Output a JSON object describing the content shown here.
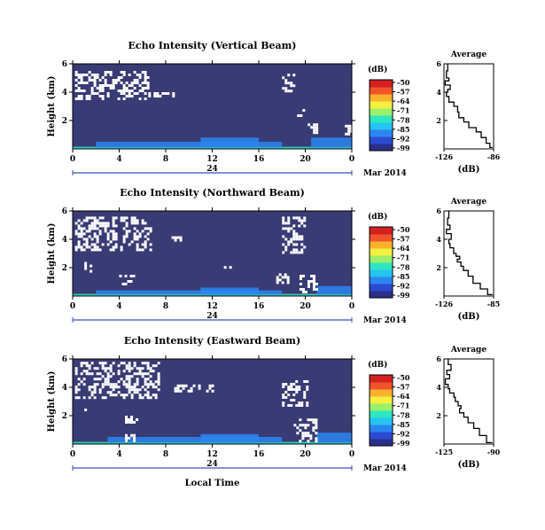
{
  "x_axis_title": "Local Time",
  "date_label": "Mar 2014",
  "day_label": "24",
  "colorbar": {
    "unit": "(dB)",
    "ticks": [
      "-50",
      "-57",
      "-64",
      "-71",
      "-78",
      "-85",
      "-92",
      "-99"
    ],
    "colors": [
      "#2b2f8a",
      "#2a4bd0",
      "#2b86f2",
      "#26c4f0",
      "#2ee6c2",
      "#9af06a",
      "#f4f040",
      "#f8b22e",
      "#f0542a",
      "#d42020"
    ]
  },
  "colors": {
    "background": "#383b74",
    "noise": "#ffffff"
  },
  "chart_data": [
    {
      "type": "heatmap",
      "title": "Echo Intensity (Vertical Beam)",
      "xlabel": "Local Time",
      "ylabel": "Height (km)",
      "x_ticks": [
        "0",
        "4",
        "8",
        "12",
        "16",
        "20",
        "0"
      ],
      "y_ticks": [
        "6",
        "4",
        "2"
      ],
      "xlim": [
        0,
        24
      ],
      "ylim": [
        0,
        6
      ],
      "value_range_db": [
        -99,
        -50
      ],
      "dominant_value_db": -99,
      "noise_blocks": [
        {
          "t": [
            0.2,
            6.5
          ],
          "h": [
            3.5,
            5.5
          ]
        },
        {
          "t": [
            6.5,
            9.2
          ],
          "h": [
            3.8,
            4.0
          ]
        },
        {
          "t": [
            18.0,
            19.0
          ],
          "h": [
            3.8,
            5.3
          ]
        },
        {
          "t": [
            19.3,
            19.8
          ],
          "h": [
            2.3,
            3.0
          ]
        },
        {
          "t": [
            20.2,
            21.0
          ],
          "h": [
            0.9,
            1.8
          ]
        },
        {
          "t": [
            23.4,
            23.9
          ],
          "h": [
            1.0,
            1.7
          ]
        }
      ],
      "echo_layers": [
        {
          "t": [
            0,
            24
          ],
          "h": [
            0.0,
            0.15
          ],
          "db": -78
        },
        {
          "t": [
            2,
            18
          ],
          "h": [
            0.1,
            0.5
          ],
          "db": -88
        },
        {
          "t": [
            11,
            16
          ],
          "h": [
            0.1,
            0.8
          ],
          "db": -85
        },
        {
          "t": [
            20.5,
            24
          ],
          "h": [
            0.1,
            0.8
          ],
          "db": -85
        }
      ],
      "average_profile": {
        "title": "Average",
        "xlabel": "(dB)",
        "x_ticks": [
          "-126",
          "-86"
        ],
        "xlim": [
          -126,
          -86
        ],
        "y_ticks": [
          "6",
          "4",
          "2"
        ],
        "ylim": [
          0,
          6
        ],
        "db": [
          -123,
          -124,
          -122,
          -125,
          -121,
          -123,
          -124,
          -122,
          -118,
          -115,
          -114,
          -110,
          -106,
          -100,
          -96,
          -92,
          -89,
          -87
        ],
        "height_km": [
          6.0,
          5.5,
          5.0,
          4.8,
          4.5,
          4.2,
          4.0,
          3.7,
          3.3,
          3.0,
          2.6,
          2.2,
          1.9,
          1.5,
          1.2,
          0.8,
          0.4,
          0.1
        ]
      }
    },
    {
      "type": "heatmap",
      "title": "Echo Intensity (Northward Beam)",
      "xlabel": "Local Time",
      "ylabel": "Height (km)",
      "x_ticks": [
        "0",
        "4",
        "8",
        "12",
        "16",
        "20",
        "0"
      ],
      "y_ticks": [
        "6",
        "4",
        "2"
      ],
      "xlim": [
        0,
        24
      ],
      "ylim": [
        0,
        6
      ],
      "value_range_db": [
        -99,
        -50
      ],
      "dominant_value_db": -99,
      "noise_blocks": [
        {
          "t": [
            0.2,
            6.8
          ],
          "h": [
            3.2,
            5.6
          ]
        },
        {
          "t": [
            1.0,
            1.5
          ],
          "h": [
            1.8,
            2.4
          ]
        },
        {
          "t": [
            4.0,
            5.2
          ],
          "h": [
            0.8,
            1.5
          ]
        },
        {
          "t": [
            8.5,
            9.2
          ],
          "h": [
            4.0,
            4.4
          ]
        },
        {
          "t": [
            13.0,
            13.5
          ],
          "h": [
            2.0,
            2.3
          ]
        },
        {
          "t": [
            18.0,
            20.0
          ],
          "h": [
            3.0,
            5.6
          ]
        },
        {
          "t": [
            19.5,
            21.2
          ],
          "h": [
            0.3,
            1.5
          ]
        },
        {
          "t": [
            17.5,
            18.5
          ],
          "h": [
            1.0,
            1.6
          ]
        }
      ],
      "echo_layers": [
        {
          "t": [
            0,
            24
          ],
          "h": [
            0.0,
            0.15
          ],
          "db": -78
        },
        {
          "t": [
            2,
            18
          ],
          "h": [
            0.1,
            0.4
          ],
          "db": -88
        },
        {
          "t": [
            11,
            16
          ],
          "h": [
            0.1,
            0.6
          ],
          "db": -88
        },
        {
          "t": [
            21,
            24
          ],
          "h": [
            0.1,
            0.7
          ],
          "db": -85
        }
      ],
      "average_profile": {
        "title": "Average",
        "xlabel": "(dB)",
        "x_ticks": [
          "-126",
          "-85"
        ],
        "xlim": [
          -126,
          -85
        ],
        "y_ticks": [
          "6",
          "4",
          "2"
        ],
        "ylim": [
          0,
          6
        ],
        "db": [
          -122,
          -123,
          -121,
          -124,
          -120,
          -122,
          -121,
          -118,
          -116,
          -113,
          -115,
          -112,
          -110,
          -106,
          -102,
          -96,
          -90,
          -86
        ],
        "height_km": [
          6.0,
          5.5,
          5.0,
          4.7,
          4.4,
          4.0,
          3.7,
          3.4,
          3.0,
          2.8,
          2.6,
          2.4,
          2.1,
          1.8,
          1.4,
          0.9,
          0.5,
          0.1
        ]
      }
    },
    {
      "type": "heatmap",
      "title": "Echo Intensity (Eastward Beam)",
      "xlabel": "Local Time",
      "ylabel": "Height (km)",
      "x_ticks": [
        "0",
        "4",
        "8",
        "12",
        "16",
        "20",
        "0"
      ],
      "y_ticks": [
        "6",
        "4",
        "2"
      ],
      "xlim": [
        0,
        24
      ],
      "ylim": [
        0,
        6
      ],
      "value_range_db": [
        -99,
        -50
      ],
      "dominant_value_db": -99,
      "noise_blocks": [
        {
          "t": [
            0.2,
            7.5
          ],
          "h": [
            3.2,
            5.8
          ]
        },
        {
          "t": [
            1.0,
            1.6
          ],
          "h": [
            2.0,
            2.5
          ]
        },
        {
          "t": [
            4.5,
            5.5
          ],
          "h": [
            1.5,
            2.0
          ]
        },
        {
          "t": [
            8.5,
            12.0
          ],
          "h": [
            3.8,
            4.2
          ]
        },
        {
          "t": [
            18.0,
            20.2
          ],
          "h": [
            2.8,
            4.5
          ]
        },
        {
          "t": [
            19.0,
            21.0
          ],
          "h": [
            0.2,
            1.8
          ]
        },
        {
          "t": [
            4.5,
            5.2
          ],
          "h": [
            0.3,
            0.7
          ]
        }
      ],
      "echo_layers": [
        {
          "t": [
            0,
            24
          ],
          "h": [
            0.0,
            0.15
          ],
          "db": -78
        },
        {
          "t": [
            3,
            18
          ],
          "h": [
            0.1,
            0.5
          ],
          "db": -88
        },
        {
          "t": [
            11,
            16
          ],
          "h": [
            0.1,
            0.7
          ],
          "db": -85
        },
        {
          "t": [
            21,
            24
          ],
          "h": [
            0.1,
            0.8
          ],
          "db": -85
        }
      ],
      "average_profile": {
        "title": "Average",
        "xlabel": "(dB)",
        "x_ticks": [
          "-125",
          "-90"
        ],
        "xlim": [
          -125,
          -90
        ],
        "y_ticks": [
          "6",
          "4",
          "2"
        ],
        "ylim": [
          0,
          6
        ],
        "db": [
          -122,
          -120,
          -123,
          -121,
          -124,
          -122,
          -121,
          -118,
          -117,
          -115,
          -113,
          -114,
          -111,
          -108,
          -104,
          -100,
          -95,
          -91
        ],
        "height_km": [
          6.0,
          5.6,
          5.2,
          4.9,
          4.6,
          4.2,
          3.9,
          3.6,
          3.3,
          3.0,
          2.7,
          2.5,
          2.2,
          1.9,
          1.5,
          1.1,
          0.6,
          0.1
        ]
      }
    }
  ]
}
